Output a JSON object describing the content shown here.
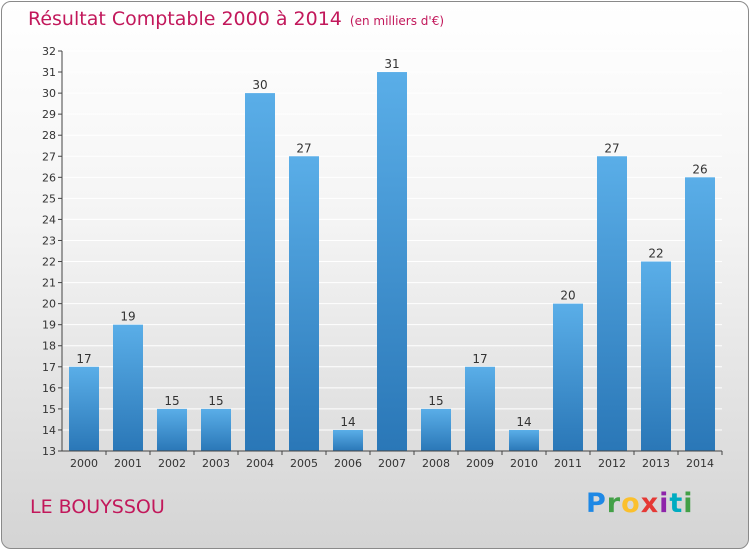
{
  "header": {
    "title": "Résultat Comptable 2000 à 2014",
    "subtitle": "(en milliers d'€)"
  },
  "commune": "LE BOUYSSOU",
  "logo": "Proxiti",
  "colors": {
    "bar_top": "#5aaee8",
    "bar_bottom": "#2a77b7",
    "title": "#c2185b",
    "grid": "#ffffff",
    "axis": "#444444"
  },
  "chart_data": {
    "type": "bar",
    "categories": [
      "2000",
      "2001",
      "2002",
      "2003",
      "2004",
      "2005",
      "2006",
      "2007",
      "2008",
      "2009",
      "2010",
      "2011",
      "2012",
      "2013",
      "2014"
    ],
    "values": [
      17,
      19,
      15,
      15,
      30,
      27,
      14,
      31,
      15,
      17,
      14,
      20,
      27,
      22,
      26
    ],
    "ylim": [
      13,
      32
    ],
    "yticks": [
      13,
      14,
      15,
      16,
      17,
      18,
      19,
      20,
      21,
      22,
      23,
      24,
      25,
      26,
      27,
      28,
      29,
      30,
      31,
      32
    ],
    "grid": true,
    "data_labels": true
  }
}
